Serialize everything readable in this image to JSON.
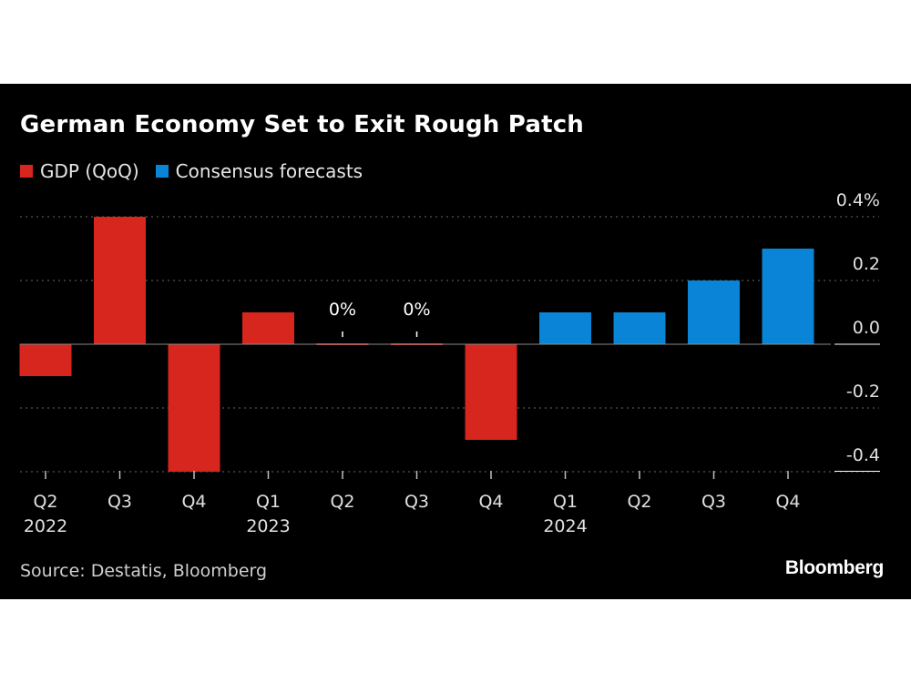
{
  "title": "German Economy Set to Exit Rough Patch",
  "source": "Source: Destatis, Bloomberg",
  "brand": "Bloomberg",
  "colors": {
    "gdp": "#d7261e",
    "forecast": "#0a84d6",
    "background": "#000000"
  },
  "chart_data": {
    "type": "bar",
    "title": "German Economy Set to Exit Rough Patch",
    "xlabel": "",
    "ylabel": "",
    "ylim": [
      -0.4,
      0.4
    ],
    "yticks": [
      "0.4%",
      "0.2",
      "0.0",
      "-0.2",
      "-0.4"
    ],
    "grid": true,
    "legend_position": "top-left",
    "categories": [
      "Q2 2022",
      "Q3 2022",
      "Q4 2022",
      "Q1 2023",
      "Q2 2023",
      "Q3 2023",
      "Q4 2023",
      "Q1 2024",
      "Q2 2024",
      "Q3 2024",
      "Q4 2024"
    ],
    "tick_labels": [
      {
        "quarter": "Q2",
        "year": "2022"
      },
      {
        "quarter": "Q3",
        "year": ""
      },
      {
        "quarter": "Q4",
        "year": ""
      },
      {
        "quarter": "Q1",
        "year": "2023"
      },
      {
        "quarter": "Q2",
        "year": ""
      },
      {
        "quarter": "Q3",
        "year": ""
      },
      {
        "quarter": "Q4",
        "year": ""
      },
      {
        "quarter": "Q1",
        "year": "2024"
      },
      {
        "quarter": "Q2",
        "year": ""
      },
      {
        "quarter": "Q3",
        "year": ""
      },
      {
        "quarter": "Q4",
        "year": ""
      }
    ],
    "series": [
      {
        "name": "GDP (QoQ)",
        "values": [
          -0.1,
          0.4,
          -0.4,
          0.1,
          0.0,
          0.0,
          -0.3,
          null,
          null,
          null,
          null
        ]
      },
      {
        "name": "Consensus forecasts",
        "values": [
          null,
          null,
          null,
          null,
          null,
          null,
          null,
          0.1,
          0.1,
          0.2,
          0.3
        ]
      }
    ],
    "annotations": [
      {
        "category": "Q2 2023",
        "text": "0%"
      },
      {
        "category": "Q3 2023",
        "text": "0%"
      }
    ]
  }
}
